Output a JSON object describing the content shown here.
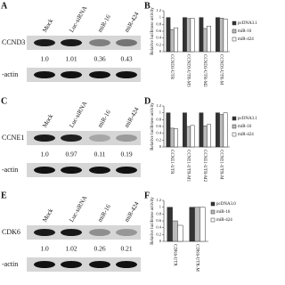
{
  "blots": [
    {
      "letter": "A",
      "lanes": [
        "Mock",
        "Luc-siRNA",
        "miR-16",
        "miR-424"
      ],
      "target": "CCND3",
      "control": "-actin",
      "values": [
        1.0,
        1.01,
        0.36,
        0.43
      ],
      "value_labels": [
        "1.0",
        "1.01",
        "0.36",
        "0.43"
      ]
    },
    {
      "letter": "C",
      "lanes": [
        "Mock",
        "Luc-siRNA",
        "miR-16",
        "miR-424"
      ],
      "target": "CCNE1",
      "control": "-actin",
      "values": [
        1.0,
        0.97,
        0.11,
        0.19
      ],
      "value_labels": [
        "1.0",
        "0.97",
        "0.11",
        "0.19"
      ]
    },
    {
      "letter": "E",
      "lanes": [
        "Mock",
        "Luc-siRNA",
        "miR-16",
        "miR-424"
      ],
      "target": "CDK6",
      "control": "-actin",
      "values": [
        1.0,
        1.02,
        0.26,
        0.21
      ],
      "value_labels": [
        "1.0",
        "1.02",
        "0.26",
        "0.21"
      ]
    }
  ],
  "chart_data": [
    {
      "type": "bar",
      "letter": "B",
      "ylabel": "Relative luciferase activity",
      "categories": [
        "CCND3-UTR",
        "CCND3-UTR-M3",
        "CCND3-UTR-M2",
        "CCND3-UTR-M"
      ],
      "series": [
        {
          "name": "pcDNA3.1",
          "color": "#333333",
          "values": [
            1.0,
            1.0,
            1.0,
            1.0
          ]
        },
        {
          "name": "miR-16",
          "color": "#bbbbbb",
          "values": [
            0.65,
            0.97,
            0.68,
            0.98
          ]
        },
        {
          "name": "miR-424",
          "color": "#ffffff",
          "values": [
            0.7,
            0.98,
            0.75,
            0.96
          ]
        }
      ],
      "ylim": [
        0,
        1.2
      ],
      "yticks": [
        0,
        0.2,
        0.4,
        0.6,
        0.8,
        1,
        1.2
      ]
    },
    {
      "type": "bar",
      "letter": "D",
      "ylabel": "Relative luciferase activity",
      "categories": [
        "CCNE1-UTR",
        "CCNE1-UTR-M1",
        "CCNE1-UTR-M2",
        "CCNE1-UTR-M"
      ],
      "series": [
        {
          "name": "pcDNA3.1",
          "color": "#333333",
          "values": [
            1.0,
            1.0,
            1.0,
            1.0
          ]
        },
        {
          "name": "miR-16",
          "color": "#bbbbbb",
          "values": [
            0.55,
            0.6,
            0.62,
            0.95
          ]
        },
        {
          "name": "miR-424",
          "color": "#ffffff",
          "values": [
            0.53,
            0.63,
            0.66,
            1.0
          ]
        }
      ],
      "ylim": [
        0,
        1.2
      ],
      "yticks": [
        0,
        0.2,
        0.4,
        0.6,
        0.8,
        1,
        1.2
      ]
    },
    {
      "type": "bar",
      "letter": "F",
      "ylabel": "Relative luciferase activity",
      "categories": [
        "CDK6-UTR",
        "CDK6-UTR-M"
      ],
      "series": [
        {
          "name": "pcDNA3.0",
          "color": "#333333",
          "values": [
            1.0,
            1.0
          ]
        },
        {
          "name": "miR-16",
          "color": "#bbbbbb",
          "values": [
            0.6,
            1.0
          ]
        },
        {
          "name": "miR-424",
          "color": "#ffffff",
          "values": [
            0.47,
            1.0
          ]
        }
      ],
      "ylim": [
        0,
        1.2
      ],
      "yticks": [
        0,
        0.2,
        0.4,
        0.6,
        0.8,
        1,
        1.2
      ]
    }
  ]
}
